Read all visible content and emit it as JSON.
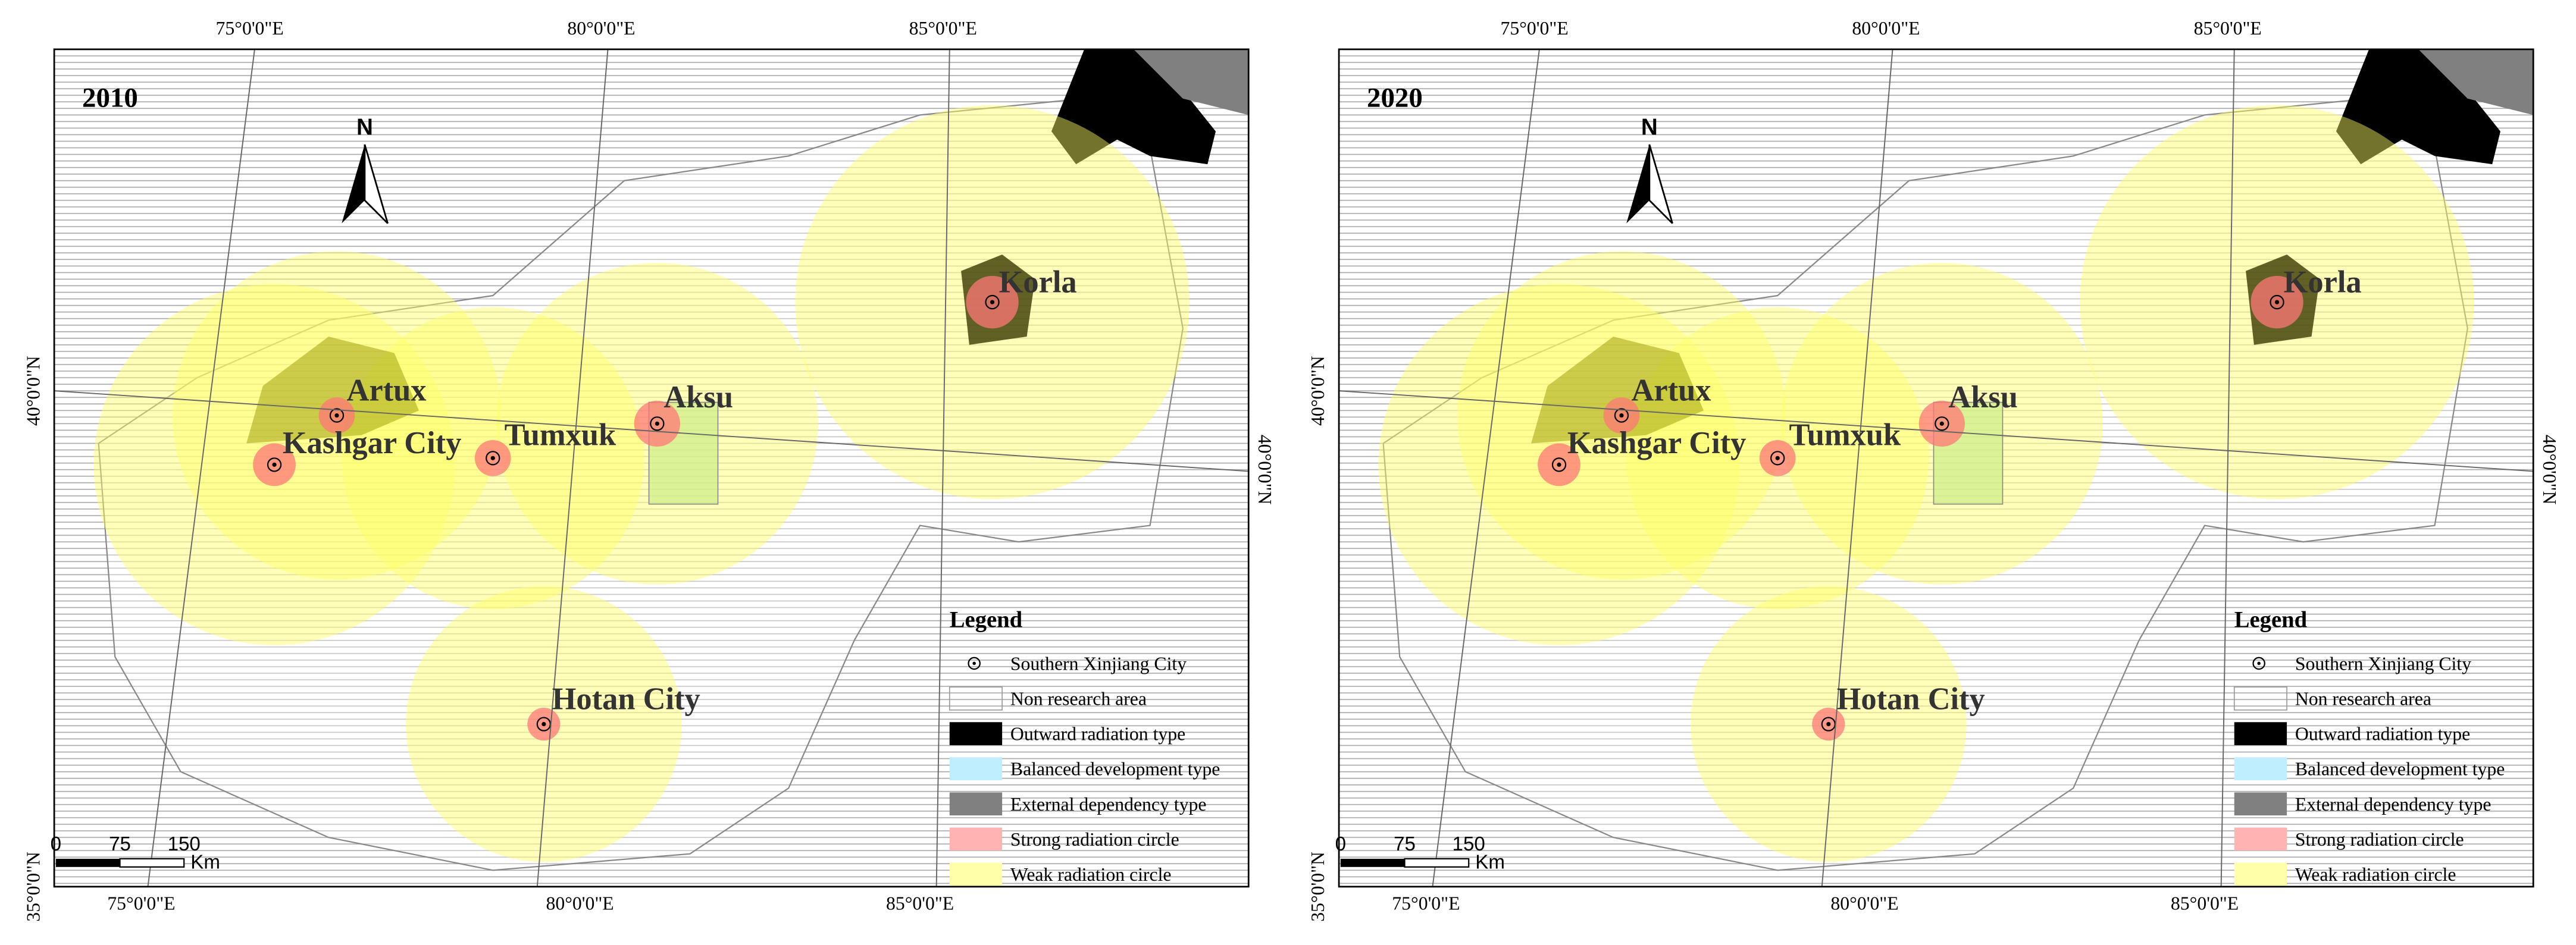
{
  "panels": [
    {
      "year": "2010",
      "cities": [
        {
          "name": "Artux"
        },
        {
          "name": "Kashgar City"
        },
        {
          "name": "Tumxuk"
        },
        {
          "name": "Aksu"
        },
        {
          "name": "Korla"
        },
        {
          "name": "Hotan City"
        }
      ]
    },
    {
      "year": "2020",
      "cities": [
        {
          "name": "Artux"
        },
        {
          "name": "Kashgar City"
        },
        {
          "name": "Tumxuk"
        },
        {
          "name": "Aksu"
        },
        {
          "name": "Korla"
        },
        {
          "name": "Hotan City"
        }
      ]
    }
  ],
  "graticule": {
    "top": [
      "75°0'0\"E",
      "80°0'0\"E",
      "85°0'0\"E"
    ],
    "bottom": [
      "75°0'0\"E",
      "80°0'0\"E",
      "85°0'0\"E"
    ],
    "left": [
      "40°0'0\"N",
      "35°0'0\"N"
    ],
    "right": [
      "40°0'0\"N"
    ]
  },
  "scale_bar": {
    "ticks": [
      "0",
      "75",
      "150"
    ],
    "unit": "Km"
  },
  "legend": {
    "title": "Legend",
    "items": [
      "Southern Xinjiang City",
      "Non research area",
      "Outward radiation type",
      "Balanced development type",
      "External dependency type",
      "Strong radiation circle",
      "Weak radiation circle"
    ]
  }
}
